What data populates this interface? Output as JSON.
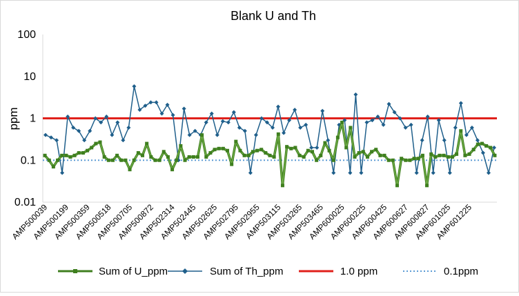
{
  "chart_data": {
    "type": "line",
    "title": "Blank U and Th",
    "xlabel": "",
    "ylabel": "ppm",
    "y_scale": "log",
    "ylim": [
      0.01,
      100
    ],
    "y_ticks": [
      "0.01",
      "0.1",
      "1",
      "10",
      "100"
    ],
    "y_tick_values": [
      0.01,
      0.1,
      1,
      10,
      100
    ],
    "grid": false,
    "legend_position": "bottom",
    "x_tick_labels": [
      "AMP500039",
      "AMP500199",
      "AMP500359",
      "AMP500518",
      "AMP500705",
      "AMP500872",
      "AMP502314",
      "AMP502445",
      "AMP502625",
      "AMP502795",
      "AMP502955",
      "AMP503115",
      "AMP503265",
      "AMP503465",
      "AMP600025",
      "AMP600225",
      "AMP600425",
      "AMP600627",
      "AMP600827",
      "AMP601025",
      "AMP601225"
    ],
    "points_per_label": 5,
    "series": [
      {
        "name": "Sum of U_ppm",
        "color": "#3f7f1f",
        "fill_color": "#70ad47",
        "marker": "square",
        "values": [
          0.13,
          0.1,
          0.07,
          0.1,
          0.13,
          0.13,
          0.12,
          0.13,
          0.15,
          0.15,
          0.17,
          0.2,
          0.25,
          0.27,
          0.12,
          0.1,
          0.1,
          0.13,
          0.1,
          0.1,
          0.06,
          0.1,
          0.15,
          0.13,
          0.25,
          0.12,
          0.1,
          0.1,
          0.16,
          0.12,
          0.06,
          0.1,
          0.22,
          0.1,
          0.12,
          0.12,
          0.12,
          0.4,
          0.12,
          0.15,
          0.18,
          0.19,
          0.19,
          0.17,
          0.08,
          0.28,
          0.17,
          0.13,
          0.13,
          0.16,
          0.17,
          0.18,
          0.15,
          0.13,
          0.12,
          0.42,
          0.025,
          0.21,
          0.19,
          0.2,
          0.13,
          0.12,
          0.17,
          0.16,
          0.1,
          0.13,
          0.26,
          0.17,
          0.1,
          0.35,
          0.8,
          0.2,
          0.6,
          0.12,
          0.15,
          0.16,
          0.12,
          0.16,
          0.18,
          0.13,
          0.13,
          0.1,
          0.1,
          0.025,
          0.11,
          0.1,
          0.1,
          0.11,
          0.11,
          0.13,
          0.025,
          0.14,
          0.12,
          0.13,
          0.13,
          0.12,
          0.12,
          0.14,
          0.5,
          0.13,
          0.14,
          0.18,
          0.24,
          0.25,
          0.22,
          0.2,
          0.13
        ]
      },
      {
        "name": "Sum of Th_ppm",
        "color": "#1f5f8b",
        "fill_color": "#1f5f8b",
        "marker": "diamond",
        "values": [
          0.4,
          0.35,
          0.3,
          0.05,
          1.1,
          0.6,
          0.5,
          0.3,
          0.5,
          1.0,
          0.8,
          1.1,
          0.4,
          0.8,
          0.3,
          0.6,
          5.8,
          1.6,
          2.0,
          2.4,
          2.4,
          1.3,
          2.1,
          1.2,
          0.1,
          1.7,
          0.4,
          0.5,
          0.4,
          0.8,
          1.3,
          0.4,
          0.85,
          0.8,
          1.4,
          0.6,
          0.5,
          0.05,
          0.4,
          1.0,
          0.8,
          0.6,
          1.9,
          0.45,
          0.9,
          1.6,
          0.6,
          0.7,
          0.2,
          0.2,
          1.5,
          0.3,
          0.05,
          0.7,
          0.9,
          0.05,
          3.7,
          0.05,
          0.8,
          0.9,
          1.1,
          0.7,
          2.2,
          1.4,
          1.0,
          0.6,
          0.7,
          0.05,
          0.3,
          1.1,
          0.05,
          0.9,
          0.3,
          0.05,
          0.6,
          2.3,
          0.4,
          0.6,
          0.3,
          0.15,
          0.05,
          0.2
        ]
      },
      {
        "name": "1.0 ppm",
        "color": "#e0201b",
        "style": "solid",
        "constant": 1.0
      },
      {
        "name": "0.1ppm",
        "color": "#5b9bd5",
        "style": "dotted",
        "constant": 0.1
      }
    ]
  }
}
